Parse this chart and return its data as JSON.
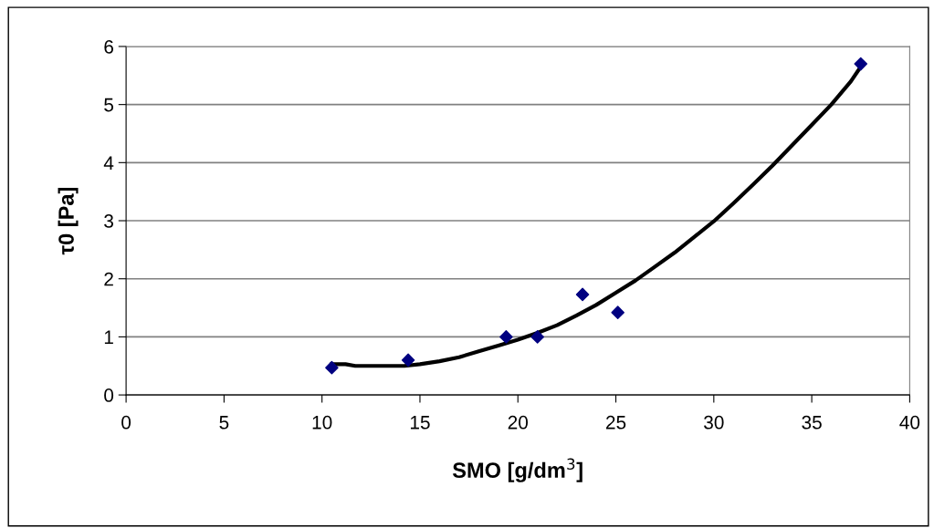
{
  "chart_data": {
    "type": "scatter",
    "xlabel": "SMO [g/dm$^{3}$]",
    "ylabel": "τ0 [Pa]",
    "xlim": [
      0,
      40
    ],
    "xticks": [
      0,
      5,
      10,
      15,
      20,
      25,
      30,
      35,
      40
    ],
    "ylim": [
      0,
      6
    ],
    "yticks": [
      0,
      1,
      2,
      3,
      4,
      5,
      6
    ],
    "grid": "y",
    "legend": false,
    "series": [
      {
        "color": "#000080",
        "marker": "diamond",
        "x": [
          10.5,
          14.4,
          19.4,
          21.0,
          23.3,
          25.1,
          37.5
        ],
        "values": [
          0.47,
          0.6,
          1.0,
          1.0,
          1.73,
          1.42,
          5.7
        ]
      },
      {
        "type": "line",
        "color": "#000000",
        "marker": "none",
        "line_style": "solid",
        "x": [
          10.5,
          11.2,
          11.7,
          13,
          14.2,
          15,
          16,
          17,
          18,
          19,
          20,
          21,
          22,
          23,
          24,
          25,
          26,
          27,
          28,
          29,
          30,
          31,
          32,
          33,
          34,
          35,
          36,
          37,
          37.5
        ],
        "values": [
          0.53,
          0.53,
          0.5,
          0.5,
          0.5,
          0.53,
          0.58,
          0.65,
          0.75,
          0.85,
          0.95,
          1.07,
          1.2,
          1.37,
          1.55,
          1.76,
          1.97,
          2.21,
          2.45,
          2.72,
          2.99,
          3.3,
          3.62,
          3.95,
          4.3,
          4.65,
          5.0,
          5.4,
          5.65
        ]
      }
    ]
  }
}
